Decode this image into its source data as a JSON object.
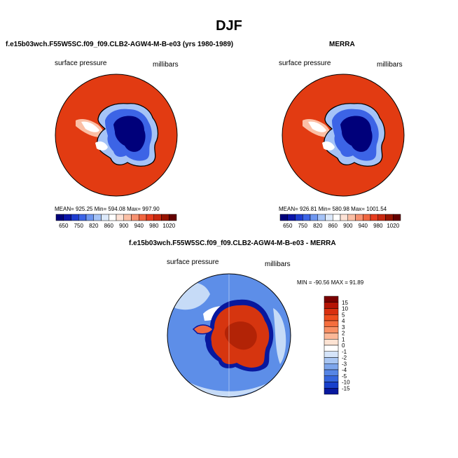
{
  "figure": {
    "title": "DJF"
  },
  "panels": [
    {
      "title": "f.e15b03wch.F55W5SC.f09_f09.CLB2-AGW4-M-B-e03 (yrs 1980-1989)",
      "variable": "surface pressure",
      "units": "millibars",
      "stats": {
        "mean": "925.25",
        "min": "594.08",
        "max": "997.90"
      },
      "stats_text": "MEAN= 925.25   Min= 594.08   Max= 997.90"
    },
    {
      "title": "MERRA",
      "variable": "surface pressure",
      "units": "millibars",
      "stats": {
        "mean": "926.81",
        "min": "580.98",
        "max": "1001.54"
      },
      "stats_text": "MEAN= 926.81   Min= 580.98   Max= 1001.54"
    },
    {
      "title": "f.e15b03wch.F55W5SC.f09_f09.CLB2-AGW4-M-B-e03 - MERRA",
      "variable": "surface pressure",
      "units": "millibars",
      "stats": {
        "min": "-90.56",
        "max": "91.89"
      },
      "stats_text": "MIN = -90.56  MAX =   91.89"
    }
  ],
  "colorbar_abs": {
    "ticks": [
      "650",
      "750",
      "820",
      "860",
      "900",
      "940",
      "980",
      "1020"
    ],
    "colors": [
      "#00007a",
      "#0a14a8",
      "#1e3ccf",
      "#3c64e6",
      "#6e96f0",
      "#a5c3f7",
      "#dce9fb",
      "#ffffff",
      "#fde2d6",
      "#fbbfa5",
      "#f79170",
      "#f06640",
      "#e63c1e",
      "#c8280f",
      "#961400",
      "#640000"
    ]
  },
  "colorbar_diff": {
    "ticks": [
      "15",
      "10",
      "5",
      "4",
      "3",
      "2",
      "1",
      "0",
      "-1",
      "-2",
      "-3",
      "-4",
      "-5",
      "-10",
      "-15"
    ],
    "colors": [
      "#7a0000",
      "#b51405",
      "#d9300f",
      "#ee4e1e",
      "#f56e3e",
      "#f99065",
      "#fcb898",
      "#fde3d3",
      "#ffffff",
      "#d5e4f9",
      "#a9c6f3",
      "#7ea6ec",
      "#5685e5",
      "#3565dd",
      "#1840cc",
      "#08189e"
    ]
  },
  "map_colors": {
    "ocean_abs": "#e23b12",
    "ocean_diff_light": "#c6dbf7",
    "ocean_diff_mid": "#5d8ee8",
    "land_diff": "#d6350f",
    "coast": "#000000"
  }
}
